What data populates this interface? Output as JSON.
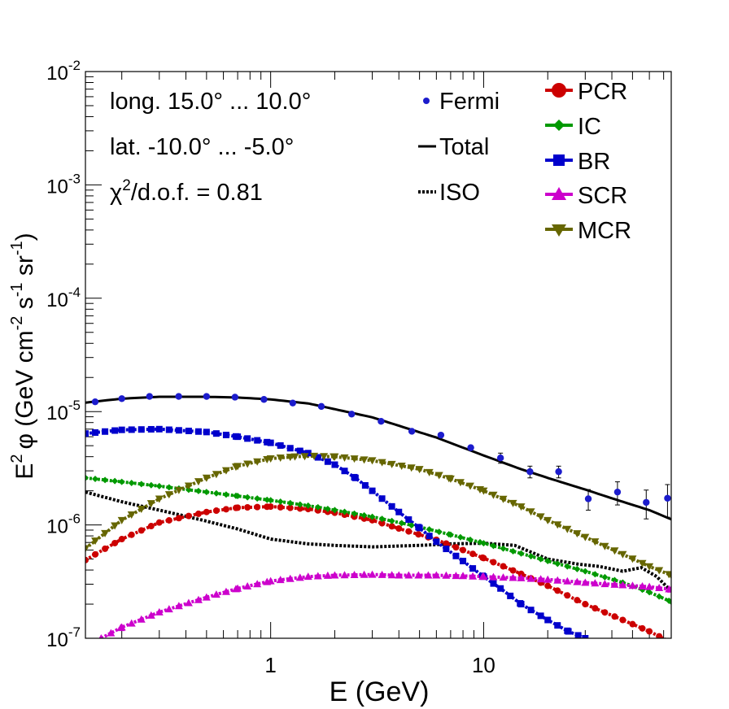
{
  "chart_data": {
    "type": "line",
    "title": "",
    "xlabel": "E (GeV)",
    "ylabel": {
      "base": "E",
      "base_sup": "2",
      "phi": "φ (GeV cm",
      "cm_exp": "-2",
      "s": " s",
      "s_exp": "-1",
      "sr": " sr",
      "sr_exp": "-1",
      "close": ")"
    },
    "x_scale": "log",
    "y_scale": "log",
    "xlim": [
      0.135,
      76
    ],
    "ylim": [
      1e-07,
      0.01
    ],
    "x_tick_labels": [
      {
        "value": 1,
        "label": "1"
      },
      {
        "value": 10,
        "label": "10"
      }
    ],
    "y_tick_labels": [
      {
        "value": 1e-07,
        "base": "10",
        "exp": "-7"
      },
      {
        "value": 1e-06,
        "base": "10",
        "exp": "-6"
      },
      {
        "value": 1e-05,
        "base": "10",
        "exp": "-5"
      },
      {
        "value": 0.0001,
        "base": "10",
        "exp": "-4"
      },
      {
        "value": 0.001,
        "base": "10",
        "exp": "-3"
      },
      {
        "value": 0.01,
        "base": "10",
        "exp": "-2"
      }
    ],
    "annotations": {
      "longitude": "long. 15.0° ... 10.0°",
      "latitude": "lat. -10.0° ... -5.0°",
      "chi2_symbol": "χ",
      "chi2_exp": "2",
      "chi2_rest": "/d.o.f. = 0.81"
    },
    "legend_placement": "top-right",
    "fermi": {
      "name": "Fermi",
      "color": "#1c1ccc",
      "points": [
        {
          "x": 0.15,
          "y": 1.22e-05,
          "err": 0
        },
        {
          "x": 0.2,
          "y": 1.3e-05,
          "err": 0
        },
        {
          "x": 0.27,
          "y": 1.36e-05,
          "err": 0
        },
        {
          "x": 0.37,
          "y": 1.36e-05,
          "err": 0
        },
        {
          "x": 0.5,
          "y": 1.36e-05,
          "err": 0
        },
        {
          "x": 0.68,
          "y": 1.34e-05,
          "err": 0
        },
        {
          "x": 0.93,
          "y": 1.28e-05,
          "err": 0
        },
        {
          "x": 1.27,
          "y": 1.19e-05,
          "err": 0
        },
        {
          "x": 1.73,
          "y": 1.11e-05,
          "err": 0
        },
        {
          "x": 2.4,
          "y": 9.5e-06,
          "err": 0
        },
        {
          "x": 3.3,
          "y": 8.2e-06,
          "err": 0
        },
        {
          "x": 4.6,
          "y": 6.7e-06,
          "err": 0
        },
        {
          "x": 6.3,
          "y": 6.2e-06,
          "err": 0
        },
        {
          "x": 8.7,
          "y": 4.8e-06,
          "err": 0
        },
        {
          "x": 12,
          "y": 3.9e-06,
          "err": 4e-07
        },
        {
          "x": 16.5,
          "y": 2.95e-06,
          "err": 3.5e-07
        },
        {
          "x": 22.5,
          "y": 2.95e-06,
          "err": 3.5e-07
        },
        {
          "x": 31,
          "y": 1.7e-06,
          "err": 3.5e-07
        },
        {
          "x": 42.5,
          "y": 1.95e-06,
          "err": 4.5e-07
        },
        {
          "x": 58,
          "y": 1.58e-06,
          "err": 4.5e-07
        },
        {
          "x": 73,
          "y": 1.72e-06,
          "err": 5.5e-07
        }
      ]
    },
    "lines": [
      {
        "name": "Total",
        "color": "#000000",
        "style": "solid",
        "x": [
          0.135,
          0.2,
          0.3,
          0.5,
          0.7,
          1.0,
          1.5,
          2.0,
          3.0,
          4.0,
          6.0,
          10,
          15,
          20,
          30,
          45,
          60,
          76
        ],
        "y": [
          1.2e-05,
          1.3e-05,
          1.35e-05,
          1.35e-05,
          1.33e-05,
          1.28e-05,
          1.18e-05,
          1.05e-05,
          8.9e-06,
          7.5e-06,
          5.9e-06,
          4.1e-06,
          3.1e-06,
          2.6e-06,
          2.05e-06,
          1.6e-06,
          1.35e-06,
          1.12e-06
        ]
      },
      {
        "name": "ISO",
        "color": "#000000",
        "style": "dotted",
        "x": [
          0.135,
          0.2,
          0.3,
          0.5,
          0.7,
          1.0,
          1.5,
          2.0,
          3.0,
          5.0,
          7.0,
          10,
          14,
          20,
          28,
          35,
          45,
          55,
          65,
          76
        ],
        "y": [
          1.95e-06,
          1.6e-06,
          1.35e-06,
          1.08e-06,
          9.2e-07,
          7.5e-07,
          6.8e-07,
          6.6e-07,
          6.4e-07,
          6.6e-07,
          6.8e-07,
          6.9e-07,
          6.6e-07,
          5e-07,
          4.5e-07,
          4.3e-07,
          3.9e-07,
          4.2e-07,
          3.5e-07,
          2.6e-07
        ]
      }
    ],
    "series": [
      {
        "name": "PCR",
        "color": "#cc0000",
        "marker": "circle",
        "x": [
          0.135,
          0.2,
          0.3,
          0.5,
          0.7,
          1.0,
          1.5,
          2.0,
          3.0,
          4.0,
          6.0,
          8.0,
          10,
          15,
          20,
          30,
          45,
          60,
          76
        ],
        "y": [
          4.9e-07,
          7.5e-07,
          1.05e-06,
          1.3e-06,
          1.42e-06,
          1.45e-06,
          1.38e-06,
          1.28e-06,
          1.1e-06,
          9.3e-07,
          7.4e-07,
          6e-07,
          5.1e-07,
          3.7e-07,
          2.9e-07,
          2e-07,
          1.45e-07,
          1.15e-07,
          9.2e-08
        ]
      },
      {
        "name": "IC",
        "color": "#009900",
        "marker": "diamond",
        "x": [
          0.135,
          0.2,
          0.3,
          0.5,
          0.7,
          1.0,
          1.5,
          2.0,
          3.0,
          5.0,
          7.0,
          10,
          15,
          20,
          30,
          45,
          60,
          76
        ],
        "y": [
          2.6e-06,
          2.4e-06,
          2.2e-06,
          1.95e-06,
          1.8e-06,
          1.65e-06,
          1.48e-06,
          1.35e-06,
          1.18e-06,
          9.6e-07,
          8.2e-07,
          6.9e-07,
          5.6e-07,
          4.8e-07,
          3.9e-07,
          3.1e-07,
          2.55e-07,
          2.1e-07
        ]
      },
      {
        "name": "BR",
        "color": "#0000cc",
        "marker": "square",
        "x": [
          0.135,
          0.2,
          0.3,
          0.5,
          0.7,
          1.0,
          1.5,
          2.0,
          2.5,
          3.0,
          4.0,
          5.0,
          6.0,
          8.0,
          10,
          12,
          15,
          20,
          25,
          30
        ],
        "y": [
          6.4e-06,
          6.9e-06,
          7e-06,
          6.6e-06,
          6e-06,
          5.3e-06,
          4.3e-06,
          3.4e-06,
          2.6e-06,
          2e-06,
          1.3e-06,
          9.4e-07,
          7.1e-07,
          4.8e-07,
          3.5e-07,
          2.75e-07,
          2e-07,
          1.45e-07,
          1.15e-07,
          1e-07
        ]
      },
      {
        "name": "SCR",
        "color": "#cc00cc",
        "marker": "triangle-up",
        "x": [
          0.16,
          0.2,
          0.3,
          0.5,
          0.7,
          1.0,
          1.5,
          2.0,
          3.0,
          4.0,
          6.0,
          8.0,
          10,
          15,
          20,
          30,
          45,
          60,
          76
        ],
        "y": [
          1e-07,
          1.25e-07,
          1.7e-07,
          2.3e-07,
          2.75e-07,
          3.2e-07,
          3.5e-07,
          3.6e-07,
          3.65e-07,
          3.6e-07,
          3.6e-07,
          3.55e-07,
          3.5e-07,
          3.4e-07,
          3.3e-07,
          3.1e-07,
          2.95e-07,
          2.85e-07,
          2.7e-07
        ]
      },
      {
        "name": "MCR",
        "color": "#666600",
        "marker": "triangle-down",
        "x": [
          0.135,
          0.2,
          0.3,
          0.5,
          0.7,
          1.0,
          1.3,
          1.6,
          2.0,
          3.0,
          5.0,
          7.0,
          10,
          15,
          20,
          30,
          45,
          60,
          76
        ],
        "y": [
          6.2e-07,
          1.1e-06,
          1.7e-06,
          2.6e-06,
          3.3e-06,
          3.85e-06,
          4e-06,
          4.05e-06,
          4e-06,
          3.7e-06,
          3.1e-06,
          2.55e-06,
          2e-06,
          1.45e-06,
          1.1e-06,
          7.8e-07,
          5.5e-07,
          4.3e-07,
          3.6e-07
        ]
      }
    ]
  }
}
